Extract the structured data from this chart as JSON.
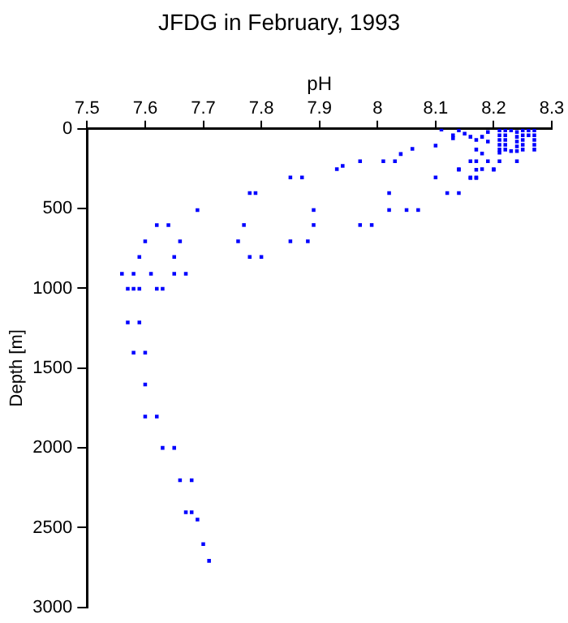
{
  "chart_data": {
    "type": "scatter",
    "title": "JFDG in February, 1993",
    "xlabel": "pH",
    "ylabel": "Depth [m]",
    "xlim": [
      7.5,
      8.3
    ],
    "xticks": [
      7.5,
      7.6,
      7.7,
      7.8,
      7.9,
      8,
      8.1,
      8.2,
      8.3
    ],
    "ylim": [
      3000,
      0
    ],
    "yticks": [
      0,
      500,
      1000,
      1500,
      2000,
      2500,
      3000
    ],
    "grid": false,
    "legend": false,
    "marker": "square",
    "series": [
      {
        "color": "#0000ff",
        "x": [
          8.11,
          8.1,
          8.06,
          8.04,
          8.03,
          8.01,
          7.97,
          7.94,
          7.93,
          7.85,
          7.87,
          8.1,
          8.14,
          8.12,
          8.14,
          7.78,
          7.79,
          8.02,
          7.69,
          7.89,
          8.02,
          8.05,
          8.07,
          7.62,
          7.64,
          7.77,
          7.89,
          7.97,
          7.99,
          7.6,
          7.66,
          7.76,
          7.85,
          7.88,
          7.59,
          7.65,
          7.78,
          7.8,
          7.56,
          7.58,
          7.61,
          7.65,
          7.67,
          7.57,
          7.58,
          7.59,
          7.62,
          7.63,
          7.57,
          7.59,
          7.58,
          7.6,
          7.6,
          7.6,
          7.62,
          7.63,
          7.65,
          7.66,
          7.68,
          7.67,
          7.68,
          7.69,
          7.7,
          7.71,
          8.13,
          8.13,
          8.14,
          8.15,
          8.16,
          8.17,
          8.18,
          8.19,
          8.19,
          8.17,
          8.18,
          8.19,
          8.16,
          8.14,
          8.17,
          8.2,
          8.16,
          8.17,
          8.21,
          8.21,
          8.21,
          8.21,
          8.21,
          8.21,
          8.22,
          8.22,
          8.22,
          8.22,
          8.22,
          8.23,
          8.23,
          8.24,
          8.24,
          8.24,
          8.24,
          8.24,
          8.25,
          8.25,
          8.25,
          8.25,
          8.25,
          8.26,
          8.26,
          8.27,
          8.27,
          8.27,
          8.27,
          8.27,
          8.21,
          8.24,
          8.18,
          8.2,
          8.17,
          8.16,
          8.17
        ],
        "values": [
          5,
          105,
          126,
          158,
          203,
          203,
          203,
          232,
          253,
          305,
          305,
          305,
          253,
          403,
          403,
          403,
          403,
          403,
          509,
          509,
          509,
          509,
          509,
          603,
          603,
          603,
          603,
          603,
          603,
          705,
          705,
          705,
          705,
          705,
          803,
          803,
          803,
          803,
          909,
          909,
          909,
          909,
          909,
          1003,
          1003,
          1003,
          1003,
          1003,
          1214,
          1214,
          1403,
          1403,
          1603,
          1803,
          1803,
          2000,
          2000,
          2203,
          2203,
          2403,
          2403,
          2449,
          2603,
          2708,
          40,
          60,
          10,
          30,
          50,
          70,
          50,
          20,
          80,
          130,
          155,
          203,
          203,
          256,
          256,
          256,
          309,
          309,
          10,
          40,
          70,
          100,
          130,
          150,
          10,
          40,
          70,
          100,
          130,
          10,
          140,
          20,
          50,
          80,
          110,
          140,
          10,
          40,
          70,
          100,
          130,
          10,
          40,
          10,
          40,
          70,
          100,
          130,
          203,
          203,
          253,
          253,
          203,
          305,
          305
        ]
      }
    ]
  }
}
